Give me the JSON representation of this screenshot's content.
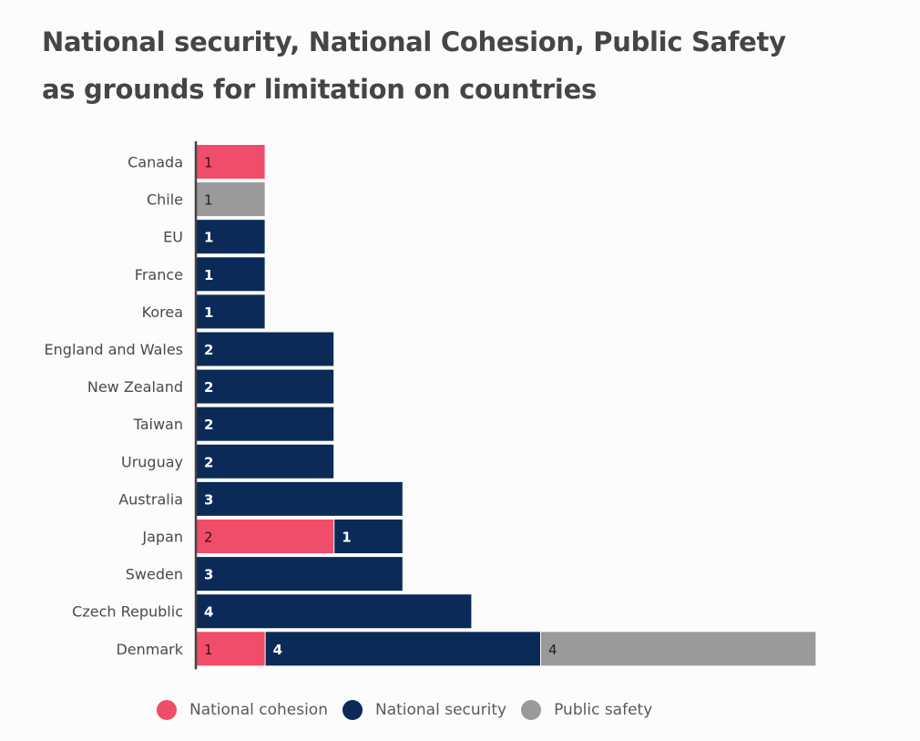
{
  "chart_data": {
    "type": "bar",
    "orientation": "horizontal",
    "stacked": true,
    "title": "National security, National Cohesion, Public Safety as grounds for limitation on countries",
    "title_lines": [
      "National security, National Cohesion, Public Safety",
      "as grounds for limitation on countries"
    ],
    "xlabel": "",
    "ylabel": "",
    "xlim": [
      0,
      9
    ],
    "grid": false,
    "legend_position": "bottom",
    "categories": [
      "Canada",
      "Chile",
      "EU",
      "France",
      "Korea",
      "England and Wales",
      "New Zealand",
      "Taiwan",
      "Uruguay",
      "Australia",
      "Japan",
      "Sweden",
      "Czech Republic",
      "Denmark"
    ],
    "series": [
      {
        "name": "National cohesion",
        "color": "#f04d6b",
        "label_color": "#3a1018",
        "values": [
          1,
          0,
          0,
          0,
          0,
          0,
          0,
          0,
          0,
          0,
          2,
          0,
          0,
          1
        ]
      },
      {
        "name": "National security",
        "color": "#0b2a58",
        "label_color": "#ffffff",
        "values": [
          0,
          0,
          1,
          1,
          1,
          2,
          2,
          2,
          2,
          3,
          1,
          3,
          4,
          4
        ]
      },
      {
        "name": "Public safety",
        "color": "#9a9a9a",
        "label_color": "#222222",
        "values": [
          0,
          1,
          0,
          0,
          0,
          0,
          0,
          0,
          0,
          0,
          0,
          0,
          0,
          4
        ]
      }
    ]
  }
}
